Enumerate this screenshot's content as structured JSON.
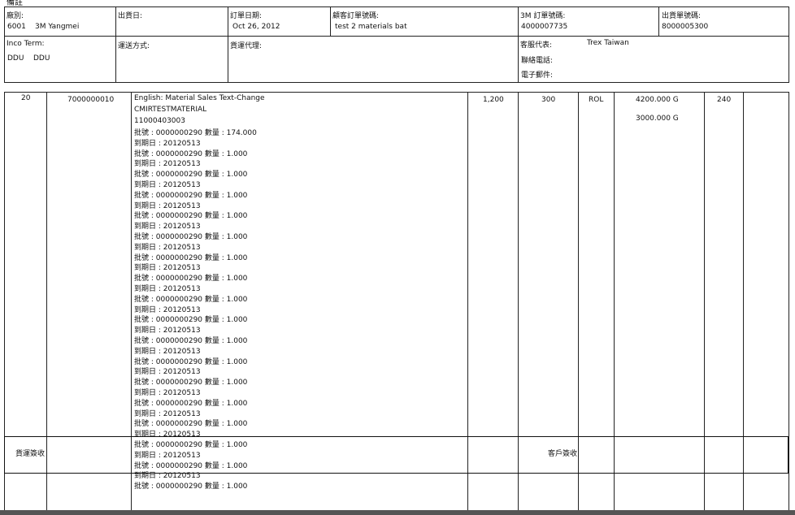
{
  "top_note": "備註",
  "header": {
    "plant": {
      "label": "廠別:",
      "code": "6001",
      "name": "3M Yangmei"
    },
    "ship_date": {
      "label": "出貨日:",
      "value": ""
    },
    "order_date": {
      "label": "訂單日期:",
      "value": "Oct 26, 2012"
    },
    "customer_po": {
      "label": "顧客訂單號碼:",
      "value": "test 2 materials bat"
    },
    "order_no": {
      "label": "3M 訂單號碼:",
      "value": "4000007735"
    },
    "delivery_no": {
      "label": "出貨單號碼:",
      "value": "8000005300"
    },
    "inco": {
      "label": "Inco Term:",
      "v1": "DDU",
      "v2": "DDU"
    },
    "ship_method": {
      "label": "運送方式:"
    },
    "forwarder": {
      "label": "貨運代理:"
    },
    "cs_rep": {
      "label": "客服代表:",
      "value": "Trex Taiwan"
    },
    "phone": {
      "label": "聯絡電話:"
    },
    "email": {
      "label": "電子郵件:"
    }
  },
  "item": {
    "line": "20",
    "material": "7000000010",
    "desc1": "English: Material Sales Text-Change",
    "desc2": "CMIRTESTMATERIAL",
    "desc3": "11000403003",
    "qty": "1,200",
    "qty2": "300",
    "uom": "ROL",
    "weight1": "4200.000 G",
    "weight2": "3000.000 G",
    "extra": "240",
    "lots": [
      {
        "batch": "批號 : 0000000290 數量 : 174.000",
        "expiry": "到期日 : 20120513"
      },
      {
        "batch": "批號 : 0000000290 數量 : 1.000",
        "expiry": "到期日 : 20120513"
      },
      {
        "batch": "批號 : 0000000290 數量 : 1.000",
        "expiry": "到期日 : 20120513"
      },
      {
        "batch": "批號 : 0000000290 數量 : 1.000",
        "expiry": "到期日 : 20120513"
      },
      {
        "batch": "批號 : 0000000290 數量 : 1.000",
        "expiry": "到期日 : 20120513"
      },
      {
        "batch": "批號 : 0000000290 數量 : 1.000",
        "expiry": "到期日 : 20120513"
      },
      {
        "batch": "批號 : 0000000290 數量 : 1.000",
        "expiry": "到期日 : 20120513"
      },
      {
        "batch": "批號 : 0000000290 數量 : 1.000",
        "expiry": "到期日 : 20120513"
      },
      {
        "batch": "批號 : 0000000290 數量 : 1.000",
        "expiry": "到期日 : 20120513"
      },
      {
        "batch": "批號 : 0000000290 數量 : 1.000",
        "expiry": "到期日 : 20120513"
      },
      {
        "batch": "批號 : 0000000290 數量 : 1.000",
        "expiry": "到期日 : 20120513"
      },
      {
        "batch": "批號 : 0000000290 數量 : 1.000",
        "expiry": "到期日 : 20120513"
      },
      {
        "batch": "批號 : 0000000290 數量 : 1.000",
        "expiry": "到期日 : 20120513"
      },
      {
        "batch": "批號 : 0000000290 數量 : 1.000",
        "expiry": "到期日 : 20120513"
      },
      {
        "batch": "批號 : 0000000290 數量 : 1.000",
        "expiry": "到期日 : 20120513"
      },
      {
        "batch": "批號 : 0000000290 數量 : 1.000",
        "expiry": "到期日 : 20120513"
      },
      {
        "batch": "批號 : 0000000290 數量 : 1.000",
        "expiry": "到期日 : 20120513"
      },
      {
        "batch": "批號 : 0000000290 數量 : 1.000",
        "expiry": ""
      }
    ]
  },
  "signatures": {
    "carrier": "貨運簽收",
    "customer": "客戶簽收"
  }
}
